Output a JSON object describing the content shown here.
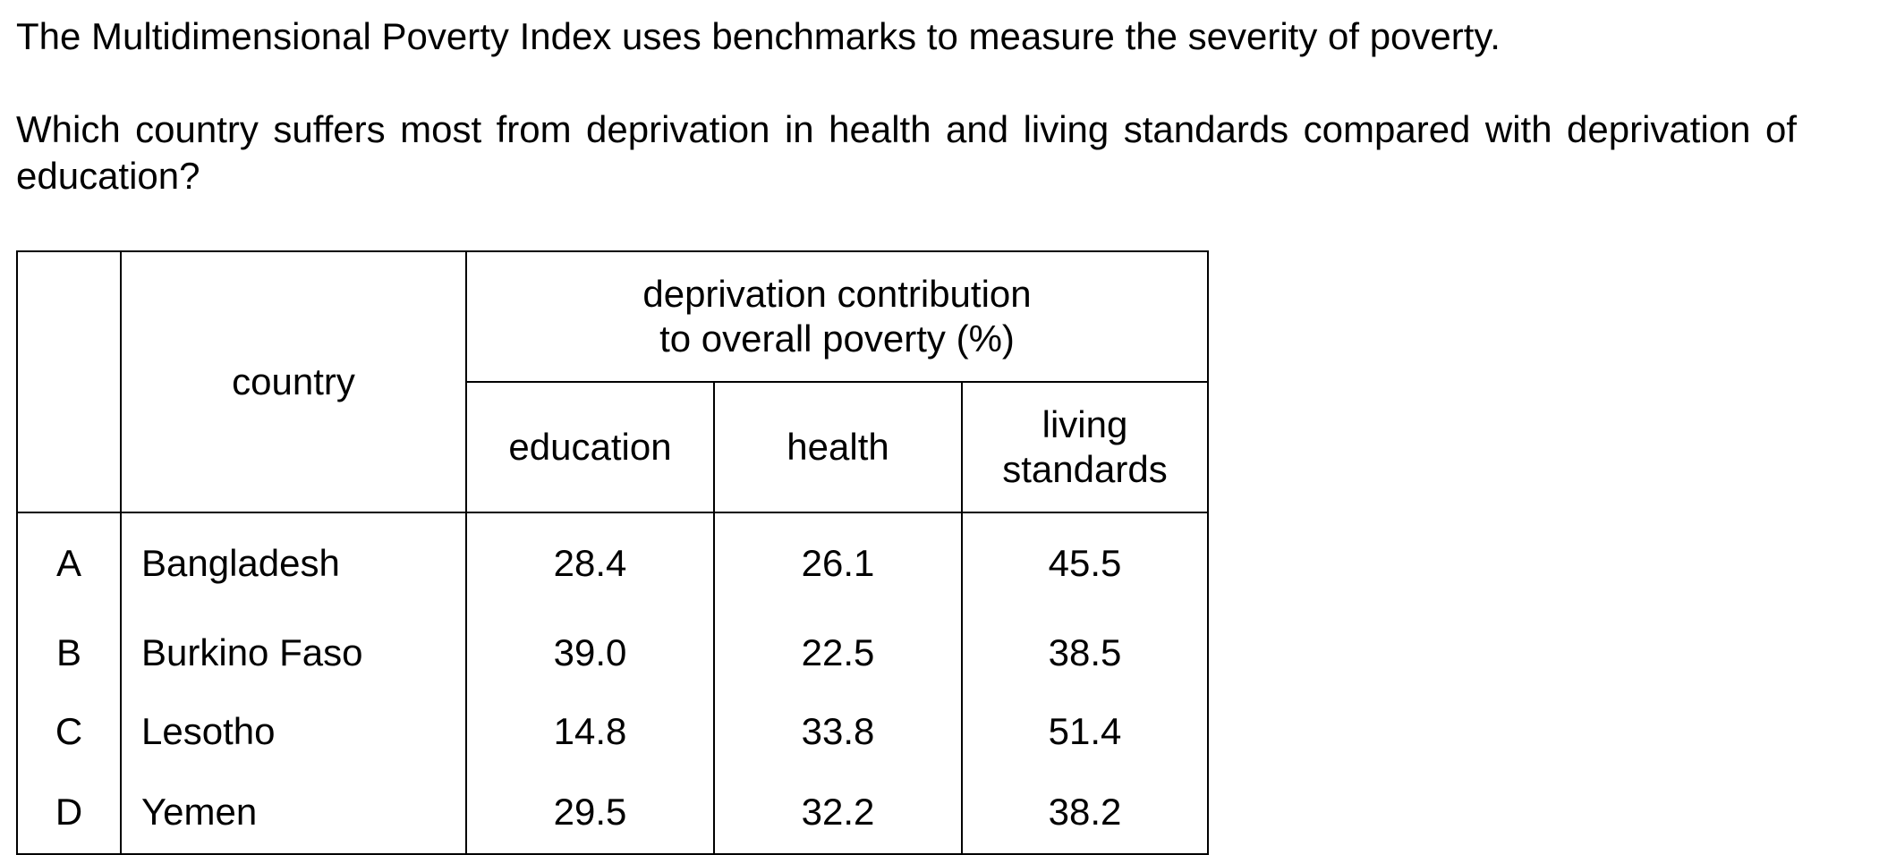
{
  "intro": "The Multidimensional Poverty Index uses benchmarks to measure the severity of poverty.",
  "question": "Which country suffers most from deprivation in health and living standards compared with deprivation of education?",
  "table": {
    "country_header": "country",
    "group_header_line1": "deprivation contribution",
    "group_header_line2": "to overall poverty (%)",
    "col_education": "education",
    "col_health": "health",
    "col_living_line1": "living",
    "col_living_line2": "standards",
    "rows": [
      {
        "option": "A",
        "country": "Bangladesh",
        "education": "28.4",
        "health": "26.1",
        "living": "45.5"
      },
      {
        "option": "B",
        "country": "Burkino Faso",
        "education": "39.0",
        "health": "22.5",
        "living": "38.5"
      },
      {
        "option": "C",
        "country": "Lesotho",
        "education": "14.8",
        "health": "33.8",
        "living": "51.4"
      },
      {
        "option": "D",
        "country": "Yemen",
        "education": "29.5",
        "health": "32.2",
        "living": "38.2"
      }
    ]
  }
}
